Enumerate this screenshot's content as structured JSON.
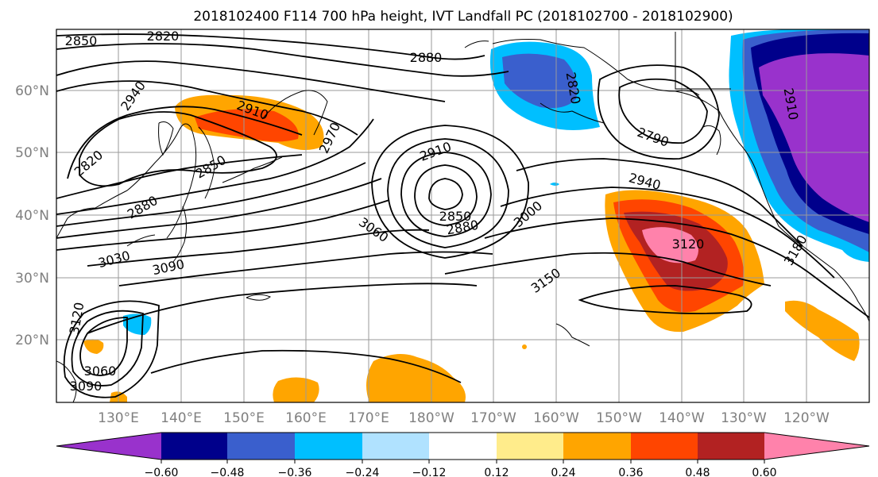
{
  "title": "2018102400 F114 700 hPa height, IVT Landfall PC (2018102700 - 2018102900)",
  "lon_labels": [
    "130°E",
    "140°E",
    "150°E",
    "160°E",
    "170°E",
    "180°W",
    "170°W",
    "160°W",
    "150°W",
    "140°W",
    "130°W",
    "120°W"
  ],
  "lat_labels": [
    "60°N",
    "50°N",
    "40°N",
    "30°N",
    "20°N"
  ],
  "colorbar": {
    "ticks": [
      "-0.60",
      "-0.48",
      "-0.36",
      "-0.24",
      "-0.12",
      "0.12",
      "0.24",
      "0.36",
      "0.48",
      "0.60"
    ],
    "colors": [
      "#9932CC",
      "#00008B",
      "#3A5FCD",
      "#00BFFF",
      "#B0E2FF",
      "#FFFFFF",
      "#FFEC8B",
      "#FFA500",
      "#FF4500",
      "#B22222",
      "#FF82AB"
    ]
  },
  "contour_labels": [
    "2850",
    "2820",
    "2880",
    "2940",
    "2910",
    "2820",
    "2850",
    "2970",
    "2880",
    "2910",
    "3060",
    "3030",
    "3090",
    "2850",
    "2880",
    "3000",
    "2940",
    "2790",
    "2820",
    "2910",
    "3120",
    "3150",
    "3180",
    "3120",
    "3060",
    "3090"
  ]
}
